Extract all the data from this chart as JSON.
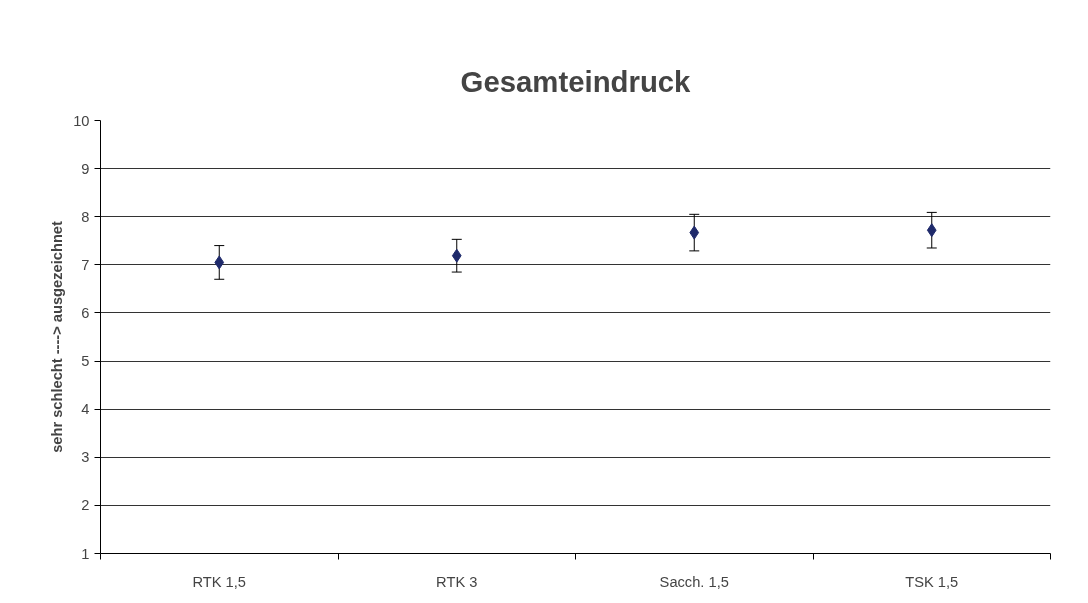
{
  "chart_data": {
    "type": "scatter",
    "title": "Gesamteindruck",
    "ylabel": "sehr schlecht ----> ausgezeichnet",
    "categories": [
      "RTK 1,5",
      "RTK 3",
      "Sacch. 1,5",
      "TSK 1,5"
    ],
    "values": [
      7.05,
      7.19,
      7.67,
      7.72
    ],
    "errors": [
      0.35,
      0.34,
      0.38,
      0.37
    ],
    "color": "#1f2a6b",
    "marker": "diamond",
    "ylim": [
      1,
      10
    ],
    "yticks": [
      1,
      2,
      3,
      4,
      5,
      6,
      7,
      8,
      9,
      10
    ],
    "grid": "y"
  }
}
